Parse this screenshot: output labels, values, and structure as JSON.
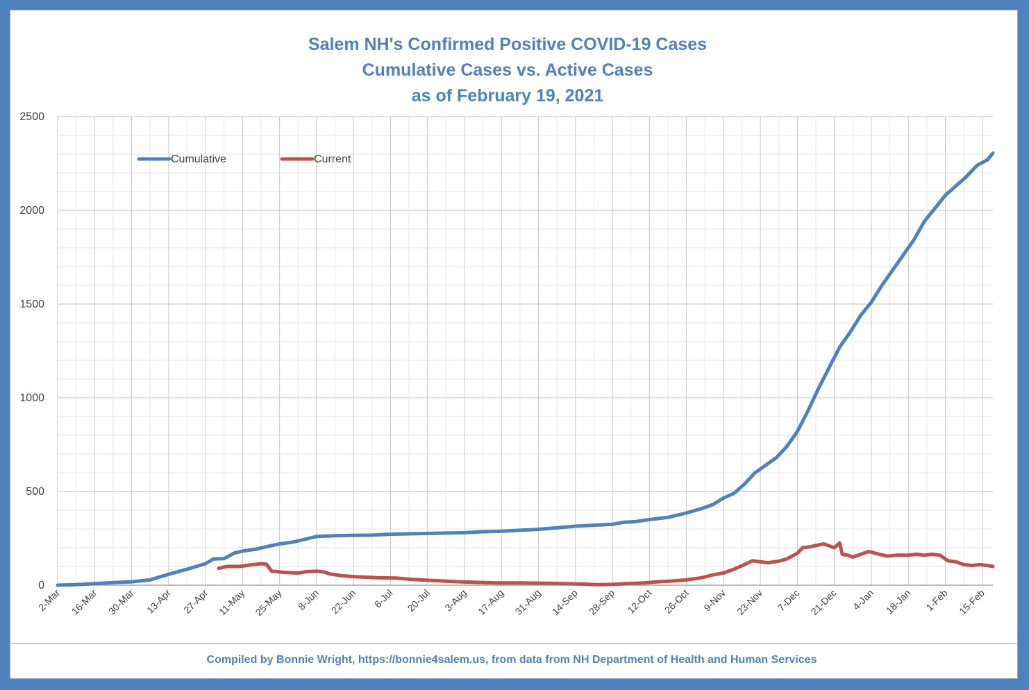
{
  "chart_data": {
    "type": "line",
    "title_lines": [
      "Salem NH's Confirmed Positive COVID-19 Cases",
      "Cumulative Cases vs. Active Cases",
      "as of February 19, 2021"
    ],
    "footer": "Compiled by Bonnie Wright, https://bonnie4salem.us, from data from NH Department of Health and Human Services",
    "xlabel": "",
    "ylabel": "",
    "ylim": [
      0,
      2500
    ],
    "yticks": [
      0,
      500,
      1000,
      1500,
      2000,
      2500
    ],
    "xlim_days": [
      0,
      354
    ],
    "x_tick_labels": [
      "2-Mar",
      "16-Mar",
      "30-Mar",
      "13-Apr",
      "27-Apr",
      "11-May",
      "25-May",
      "8-Jun",
      "22-Jun",
      "6-Jul",
      "20-Jul",
      "3-Aug",
      "17-Aug",
      "31-Aug",
      "14-Sep",
      "28-Sep",
      "12-Oct",
      "26-Oct",
      "9-Nov",
      "23-Nov",
      "7-Dec",
      "21-Dec",
      "4-Jan",
      "18-Jan",
      "1-Feb",
      "15-Feb"
    ],
    "grid": true,
    "legend_position": "top-left",
    "series": [
      {
        "name": "Cumulative",
        "color": "#4f81bd",
        "points": [
          [
            "2-Mar",
            0
          ],
          [
            "9-Mar",
            3
          ],
          [
            "16-Mar",
            8
          ],
          [
            "23-Mar",
            14
          ],
          [
            "30-Mar",
            18
          ],
          [
            "6-Apr",
            28
          ],
          [
            "13-Apr",
            58
          ],
          [
            "20-Apr",
            85
          ],
          [
            "27-Apr",
            115
          ],
          [
            "30-Apr",
            140
          ],
          [
            "4-May",
            142
          ],
          [
            "8-May",
            172
          ],
          [
            "11-May",
            182
          ],
          [
            "16-May",
            192
          ],
          [
            "20-May",
            205
          ],
          [
            "25-May",
            220
          ],
          [
            "30-May",
            230
          ],
          [
            "3-Jun",
            243
          ],
          [
            "8-Jun",
            260
          ],
          [
            "15-Jun",
            264
          ],
          [
            "22-Jun",
            266
          ],
          [
            "29-Jun",
            267
          ],
          [
            "6-Jul",
            272
          ],
          [
            "13-Jul",
            274
          ],
          [
            "20-Jul",
            276
          ],
          [
            "27-Jul",
            278
          ],
          [
            "3-Aug",
            280
          ],
          [
            "10-Aug",
            285
          ],
          [
            "17-Aug",
            288
          ],
          [
            "24-Aug",
            293
          ],
          [
            "31-Aug",
            298
          ],
          [
            "7-Sep",
            306
          ],
          [
            "14-Sep",
            315
          ],
          [
            "21-Sep",
            320
          ],
          [
            "28-Sep",
            325
          ],
          [
            "2-Oct",
            335
          ],
          [
            "7-Oct",
            340
          ],
          [
            "12-Oct",
            350
          ],
          [
            "19-Oct",
            362
          ],
          [
            "26-Oct",
            385
          ],
          [
            "1-Nov",
            410
          ],
          [
            "5-Nov",
            430
          ],
          [
            "9-Nov",
            465
          ],
          [
            "13-Nov",
            490
          ],
          [
            "17-Nov",
            540
          ],
          [
            "21-Nov",
            600
          ],
          [
            "25-Nov",
            640
          ],
          [
            "29-Nov",
            680
          ],
          [
            "3-Dec",
            740
          ],
          [
            "7-Dec",
            820
          ],
          [
            "11-Dec",
            930
          ],
          [
            "15-Dec",
            1050
          ],
          [
            "19-Dec",
            1160
          ],
          [
            "23-Dec",
            1270
          ],
          [
            "27-Dec",
            1350
          ],
          [
            "31-Dec",
            1440
          ],
          [
            "4-Jan",
            1510
          ],
          [
            "8-Jan",
            1600
          ],
          [
            "12-Jan",
            1680
          ],
          [
            "16-Jan",
            1760
          ],
          [
            "20-Jan",
            1840
          ],
          [
            "24-Jan",
            1940
          ],
          [
            "28-Jan",
            2010
          ],
          [
            "1-Feb",
            2080
          ],
          [
            "5-Feb",
            2130
          ],
          [
            "9-Feb",
            2180
          ],
          [
            "13-Feb",
            2240
          ],
          [
            "17-Feb",
            2270
          ],
          [
            "19-Feb",
            2305
          ]
        ]
      },
      {
        "name": "Current",
        "color": "#c0504d",
        "points": [
          [
            "2-May",
            90
          ],
          [
            "5-May",
            100
          ],
          [
            "10-May",
            100
          ],
          [
            "15-May",
            110
          ],
          [
            "18-May",
            115
          ],
          [
            "20-May",
            112
          ],
          [
            "22-May",
            75
          ],
          [
            "27-May",
            68
          ],
          [
            "1-Jun",
            65
          ],
          [
            "4-Jun",
            72
          ],
          [
            "8-Jun",
            75
          ],
          [
            "11-Jun",
            70
          ],
          [
            "13-Jun",
            60
          ],
          [
            "18-Jun",
            50
          ],
          [
            "23-Jun",
            45
          ],
          [
            "1-Jul",
            40
          ],
          [
            "8-Jul",
            38
          ],
          [
            "15-Jul",
            30
          ],
          [
            "22-Jul",
            25
          ],
          [
            "1-Aug",
            18
          ],
          [
            "8-Aug",
            15
          ],
          [
            "15-Aug",
            12
          ],
          [
            "25-Aug",
            12
          ],
          [
            "3-Sep",
            10
          ],
          [
            "10-Sep",
            8
          ],
          [
            "17-Sep",
            6
          ],
          [
            "22-Sep",
            3
          ],
          [
            "28-Sep",
            4
          ],
          [
            "3-Oct",
            8
          ],
          [
            "10-Oct",
            12
          ],
          [
            "15-Oct",
            18
          ],
          [
            "20-Oct",
            22
          ],
          [
            "26-Oct",
            28
          ],
          [
            "1-Nov",
            40
          ],
          [
            "5-Nov",
            55
          ],
          [
            "9-Nov",
            65
          ],
          [
            "13-Nov",
            85
          ],
          [
            "17-Nov",
            110
          ],
          [
            "20-Nov",
            130
          ],
          [
            "23-Nov",
            125
          ],
          [
            "26-Nov",
            120
          ],
          [
            "30-Nov",
            128
          ],
          [
            "3-Dec",
            140
          ],
          [
            "7-Dec",
            170
          ],
          [
            "9-Dec",
            200
          ],
          [
            "12-Dec",
            205
          ],
          [
            "15-Dec",
            215
          ],
          [
            "17-Dec",
            220
          ],
          [
            "19-Dec",
            210
          ],
          [
            "21-Dec",
            200
          ],
          [
            "23-Dec",
            225
          ],
          [
            "24-Dec",
            165
          ],
          [
            "26-Dec",
            160
          ],
          [
            "28-Dec",
            150
          ],
          [
            "31-Dec",
            165
          ],
          [
            "3-Jan",
            180
          ],
          [
            "7-Jan",
            165
          ],
          [
            "10-Jan",
            155
          ],
          [
            "14-Jan",
            160
          ],
          [
            "18-Jan",
            160
          ],
          [
            "21-Jan",
            165
          ],
          [
            "24-Jan",
            160
          ],
          [
            "27-Jan",
            165
          ],
          [
            "30-Jan",
            160
          ],
          [
            "2-Feb",
            130
          ],
          [
            "5-Feb",
            125
          ],
          [
            "8-Feb",
            110
          ],
          [
            "11-Feb",
            105
          ],
          [
            "14-Feb",
            110
          ],
          [
            "17-Feb",
            105
          ],
          [
            "19-Feb",
            100
          ]
        ]
      }
    ]
  }
}
